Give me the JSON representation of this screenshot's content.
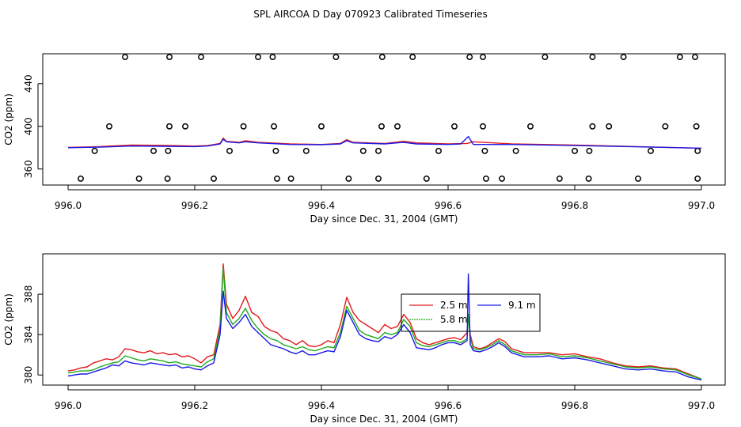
{
  "figure_title": "SPL AIRCOA D  Day 070923  Calibrated Timeseries",
  "colors": {
    "red": "#e41a1c",
    "green": "#1faa1f",
    "blue": "#1a1ae6"
  },
  "chart_data": [
    {
      "type": "line",
      "panel": "top",
      "xlabel": "Day since Dec. 31, 2004 (GMT)",
      "ylabel": "CO2 (ppm)",
      "xlim": [
        996.0,
        997.0
      ],
      "ylim": [
        345,
        468
      ],
      "x_ticks": [
        "996.0",
        "996.2",
        "996.4",
        "996.6",
        "996.8",
        "997.0"
      ],
      "y_ticks": [
        "360",
        "400",
        "440"
      ],
      "grid": false,
      "series": [
        {
          "name": "2.5 m",
          "color": "#e41a1c",
          "x": [
            996.0,
            996.05,
            996.1,
            996.15,
            996.2,
            996.22,
            996.24,
            996.245,
            996.25,
            996.27,
            996.28,
            996.3,
            996.35,
            996.4,
            996.43,
            996.44,
            996.45,
            996.5,
            996.53,
            996.55,
            996.6,
            996.63,
            996.64,
            996.7,
            996.8,
            996.9,
            997.0
          ],
          "y": [
            380.3,
            381.0,
            382.5,
            382.2,
            381.5,
            382.0,
            384.0,
            389.0,
            386.0,
            385.0,
            386.5,
            385.0,
            383.5,
            383.0,
            384.0,
            387.5,
            385.0,
            384.0,
            386.0,
            384.5,
            383.5,
            384.0,
            385.5,
            383.5,
            382.5,
            381.0,
            379.5
          ]
        },
        {
          "name": "9.1 m",
          "color": "#1a1ae6",
          "x": [
            996.0,
            996.05,
            996.1,
            996.15,
            996.2,
            996.22,
            996.24,
            996.245,
            996.25,
            996.27,
            996.28,
            996.3,
            996.35,
            996.4,
            996.43,
            996.44,
            996.45,
            996.5,
            996.53,
            996.55,
            996.6,
            996.62,
            996.632,
            996.64,
            996.7,
            996.8,
            996.9,
            997.0
          ],
          "y": [
            380.0,
            380.5,
            381.5,
            381.3,
            381.0,
            381.5,
            383.5,
            388.0,
            385.5,
            384.5,
            385.5,
            384.5,
            383.0,
            382.8,
            383.5,
            386.5,
            384.5,
            383.5,
            385.0,
            383.5,
            383.0,
            383.5,
            390.5,
            383.0,
            383.0,
            382.0,
            380.8,
            379.5
          ]
        }
      ],
      "points": [
        {
          "x": 996.09,
          "y": 465
        },
        {
          "x": 996.16,
          "y": 465
        },
        {
          "x": 996.21,
          "y": 465
        },
        {
          "x": 996.3,
          "y": 465
        },
        {
          "x": 996.323,
          "y": 465
        },
        {
          "x": 996.423,
          "y": 465
        },
        {
          "x": 996.496,
          "y": 465
        },
        {
          "x": 996.544,
          "y": 465
        },
        {
          "x": 996.634,
          "y": 465
        },
        {
          "x": 996.655,
          "y": 465
        },
        {
          "x": 996.753,
          "y": 465
        },
        {
          "x": 996.828,
          "y": 465
        },
        {
          "x": 996.877,
          "y": 465
        },
        {
          "x": 996.966,
          "y": 465
        },
        {
          "x": 996.99,
          "y": 465
        },
        {
          "x": 996.065,
          "y": 400
        },
        {
          "x": 996.16,
          "y": 400
        },
        {
          "x": 996.185,
          "y": 400
        },
        {
          "x": 996.277,
          "y": 400
        },
        {
          "x": 996.325,
          "y": 400
        },
        {
          "x": 996.4,
          "y": 400
        },
        {
          "x": 996.495,
          "y": 400
        },
        {
          "x": 996.52,
          "y": 400
        },
        {
          "x": 996.61,
          "y": 400
        },
        {
          "x": 996.655,
          "y": 400
        },
        {
          "x": 996.73,
          "y": 400
        },
        {
          "x": 996.828,
          "y": 400
        },
        {
          "x": 996.854,
          "y": 400
        },
        {
          "x": 996.943,
          "y": 400
        },
        {
          "x": 996.992,
          "y": 400
        },
        {
          "x": 996.042,
          "y": 377
        },
        {
          "x": 996.135,
          "y": 377
        },
        {
          "x": 996.158,
          "y": 377
        },
        {
          "x": 996.255,
          "y": 377
        },
        {
          "x": 996.328,
          "y": 377
        },
        {
          "x": 996.376,
          "y": 377
        },
        {
          "x": 996.466,
          "y": 377
        },
        {
          "x": 996.49,
          "y": 377
        },
        {
          "x": 996.585,
          "y": 377
        },
        {
          "x": 996.658,
          "y": 377
        },
        {
          "x": 996.707,
          "y": 377
        },
        {
          "x": 996.8,
          "y": 377
        },
        {
          "x": 996.823,
          "y": 377
        },
        {
          "x": 996.92,
          "y": 377
        },
        {
          "x": 996.994,
          "y": 377
        },
        {
          "x": 996.02,
          "y": 351
        },
        {
          "x": 996.112,
          "y": 351
        },
        {
          "x": 996.157,
          "y": 351
        },
        {
          "x": 996.23,
          "y": 351
        },
        {
          "x": 996.33,
          "y": 351
        },
        {
          "x": 996.352,
          "y": 351
        },
        {
          "x": 996.443,
          "y": 351
        },
        {
          "x": 996.49,
          "y": 351
        },
        {
          "x": 996.566,
          "y": 351
        },
        {
          "x": 996.66,
          "y": 351
        },
        {
          "x": 996.685,
          "y": 351
        },
        {
          "x": 996.776,
          "y": 351
        },
        {
          "x": 996.822,
          "y": 351
        },
        {
          "x": 996.9,
          "y": 351
        },
        {
          "x": 996.994,
          "y": 351
        }
      ]
    },
    {
      "type": "line",
      "panel": "bottom",
      "xlabel": "Day since Dec. 31, 2004 (GMT)",
      "ylabel": "CO2 (ppm)",
      "xlim": [
        996.0,
        997.0
      ],
      "ylim": [
        379.0,
        392.0
      ],
      "x_ticks": [
        "996.0",
        "996.2",
        "996.4",
        "996.6",
        "996.8",
        "997.0"
      ],
      "y_ticks": [
        "380",
        "384",
        "388"
      ],
      "grid": false,
      "legend": {
        "position": "center-right",
        "entries": [
          "2.5 m",
          "9.1 m",
          "5.8 m"
        ]
      },
      "series": [
        {
          "name": "2.5 m",
          "color": "#e41a1c",
          "x": [
            996.0,
            996.01,
            996.02,
            996.03,
            996.04,
            996.05,
            996.06,
            996.07,
            996.08,
            996.09,
            996.1,
            996.11,
            996.12,
            996.13,
            996.14,
            996.15,
            996.16,
            996.17,
            996.18,
            996.19,
            996.2,
            996.21,
            996.22,
            996.23,
            996.24,
            996.245,
            996.25,
            996.26,
            996.27,
            996.28,
            996.29,
            996.3,
            996.31,
            996.32,
            996.33,
            996.34,
            996.35,
            996.36,
            996.37,
            996.38,
            996.39,
            996.4,
            996.41,
            996.42,
            996.43,
            996.44,
            996.45,
            996.46,
            996.47,
            996.48,
            996.49,
            996.5,
            996.51,
            996.52,
            996.53,
            996.54,
            996.55,
            996.56,
            996.57,
            996.58,
            996.59,
            996.6,
            996.61,
            996.62,
            996.63,
            996.632,
            996.635,
            996.64,
            996.65,
            996.66,
            996.67,
            996.68,
            996.69,
            996.7,
            996.72,
            996.74,
            996.76,
            996.78,
            996.8,
            996.82,
            996.84,
            996.86,
            996.88,
            996.9,
            996.92,
            996.94,
            996.96,
            996.98,
            997.0
          ],
          "y": [
            380.4,
            380.5,
            380.7,
            380.8,
            381.2,
            381.4,
            381.6,
            381.5,
            381.8,
            382.6,
            382.5,
            382.3,
            382.2,
            382.4,
            382.1,
            382.2,
            382.0,
            382.1,
            381.8,
            381.9,
            381.6,
            381.2,
            381.8,
            382.0,
            385.0,
            391.0,
            387.0,
            385.6,
            386.4,
            387.8,
            386.2,
            385.8,
            384.8,
            384.4,
            384.2,
            383.6,
            383.4,
            383.0,
            383.4,
            382.9,
            382.8,
            383.0,
            383.4,
            383.2,
            385.0,
            387.7,
            386.2,
            385.4,
            385.0,
            384.6,
            384.2,
            385.0,
            384.6,
            384.8,
            386.0,
            385.2,
            383.6,
            383.2,
            383.0,
            383.2,
            383.4,
            383.6,
            383.7,
            383.5,
            384.2,
            385.8,
            384.0,
            382.8,
            382.6,
            382.8,
            383.2,
            383.6,
            383.3,
            382.6,
            382.2,
            382.2,
            382.2,
            382.0,
            382.1,
            381.8,
            381.6,
            381.2,
            380.9,
            380.8,
            380.9,
            380.7,
            380.6,
            380.1,
            379.6
          ]
        },
        {
          "name": "5.8 m",
          "color": "#1faa1f",
          "x": [
            996.0,
            996.01,
            996.02,
            996.03,
            996.04,
            996.05,
            996.06,
            996.07,
            996.08,
            996.09,
            996.1,
            996.11,
            996.12,
            996.13,
            996.14,
            996.15,
            996.16,
            996.17,
            996.18,
            996.19,
            996.2,
            996.21,
            996.22,
            996.23,
            996.24,
            996.245,
            996.25,
            996.26,
            996.27,
            996.28,
            996.29,
            996.3,
            996.31,
            996.32,
            996.33,
            996.34,
            996.35,
            996.36,
            996.37,
            996.38,
            996.39,
            996.4,
            996.41,
            996.42,
            996.43,
            996.44,
            996.45,
            996.46,
            996.47,
            996.48,
            996.49,
            996.5,
            996.51,
            996.52,
            996.53,
            996.54,
            996.55,
            996.56,
            996.57,
            996.58,
            996.59,
            996.6,
            996.61,
            996.62,
            996.63,
            996.632,
            996.635,
            996.64,
            996.65,
            996.66,
            996.67,
            996.68,
            996.69,
            996.7,
            996.72,
            996.74,
            996.76,
            996.78,
            996.8,
            996.82,
            996.84,
            996.86,
            996.88,
            996.9,
            996.92,
            996.94,
            996.96,
            996.98,
            997.0
          ],
          "y": [
            380.2,
            380.3,
            380.4,
            380.4,
            380.5,
            380.8,
            381.0,
            381.2,
            381.3,
            381.9,
            381.7,
            381.5,
            381.4,
            381.6,
            381.5,
            381.4,
            381.2,
            381.3,
            381.1,
            381.0,
            380.9,
            380.8,
            381.3,
            381.6,
            384.5,
            390.6,
            386.2,
            385.0,
            385.6,
            386.6,
            385.4,
            384.6,
            384.0,
            383.6,
            383.4,
            383.0,
            382.8,
            382.6,
            382.8,
            382.5,
            382.4,
            382.6,
            382.8,
            382.7,
            384.2,
            386.8,
            385.6,
            384.4,
            384.0,
            383.8,
            383.6,
            384.2,
            384.0,
            384.2,
            385.5,
            384.8,
            383.2,
            382.9,
            382.8,
            383.0,
            383.2,
            383.4,
            383.4,
            383.2,
            383.6,
            386.0,
            383.6,
            382.6,
            382.5,
            382.7,
            383.0,
            383.4,
            383.0,
            382.4,
            382.0,
            382.0,
            382.1,
            381.8,
            381.9,
            381.7,
            381.4,
            381.1,
            380.8,
            380.7,
            380.8,
            380.6,
            380.5,
            380.0,
            379.6
          ]
        },
        {
          "name": "9.1 m",
          "color": "#1a1ae6",
          "x": [
            996.0,
            996.01,
            996.02,
            996.03,
            996.04,
            996.05,
            996.06,
            996.07,
            996.08,
            996.09,
            996.1,
            996.11,
            996.12,
            996.13,
            996.14,
            996.15,
            996.16,
            996.17,
            996.18,
            996.19,
            996.2,
            996.21,
            996.22,
            996.23,
            996.24,
            996.245,
            996.25,
            996.26,
            996.27,
            996.28,
            996.29,
            996.3,
            996.31,
            996.32,
            996.33,
            996.34,
            996.35,
            996.36,
            996.37,
            996.38,
            996.39,
            996.4,
            996.41,
            996.42,
            996.43,
            996.44,
            996.45,
            996.46,
            996.47,
            996.48,
            996.49,
            996.5,
            996.51,
            996.52,
            996.53,
            996.54,
            996.55,
            996.56,
            996.57,
            996.58,
            996.59,
            996.6,
            996.61,
            996.62,
            996.63,
            996.632,
            996.635,
            996.64,
            996.65,
            996.66,
            996.67,
            996.68,
            996.69,
            996.7,
            996.72,
            996.74,
            996.76,
            996.78,
            996.8,
            996.82,
            996.84,
            996.86,
            996.88,
            996.9,
            996.92,
            996.94,
            996.96,
            996.98,
            997.0
          ],
          "y": [
            379.9,
            380.0,
            380.1,
            380.1,
            380.3,
            380.5,
            380.7,
            381.0,
            380.9,
            381.4,
            381.2,
            381.1,
            381.0,
            381.2,
            381.1,
            381.0,
            380.9,
            381.0,
            380.7,
            380.8,
            380.6,
            380.5,
            380.9,
            381.2,
            384.0,
            388.3,
            385.6,
            384.6,
            385.2,
            386.0,
            384.8,
            384.2,
            383.6,
            383.0,
            382.8,
            382.6,
            382.3,
            382.1,
            382.4,
            382.0,
            382.0,
            382.2,
            382.4,
            382.3,
            383.8,
            386.4,
            385.2,
            384.0,
            383.6,
            383.4,
            383.3,
            383.8,
            383.6,
            384.0,
            385.0,
            384.2,
            382.7,
            382.6,
            382.5,
            382.7,
            383.0,
            383.2,
            383.2,
            383.0,
            383.4,
            390.0,
            383.0,
            382.4,
            382.3,
            382.5,
            382.8,
            383.2,
            382.8,
            382.2,
            381.8,
            381.8,
            381.9,
            381.6,
            381.7,
            381.5,
            381.2,
            380.9,
            380.6,
            380.5,
            380.6,
            380.4,
            380.3,
            379.8,
            379.5
          ]
        }
      ]
    }
  ]
}
